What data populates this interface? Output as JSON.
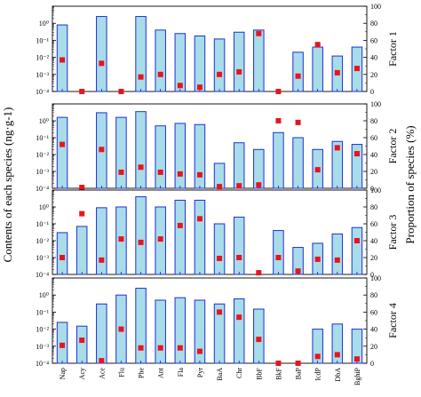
{
  "colors": {
    "bar_fill": "#a8dce9",
    "bar_stroke": "#1f2fd6",
    "marker": "#e8141e",
    "frame": "#000000"
  },
  "left_axis_title": "Contents of each species (ng·g-1)",
  "right_axis_title": "Proportion of species (%)",
  "left_ticks": [
    "10⁰",
    "10⁻¹",
    "10⁻²",
    "10⁻³",
    "10⁻⁴"
  ],
  "right_ticks": [
    "100",
    "80",
    "60",
    "40",
    "20",
    "0"
  ],
  "chart_data": [
    {
      "type": "bar",
      "panel": "Factor 1",
      "factor_label": "Factor 1",
      "categories": [
        "Nap",
        "Acy",
        "Ace",
        "Flu",
        "Phe",
        "Ant",
        "Fla",
        "Pyr",
        "BaA",
        "Chr",
        "BbF",
        "BkF",
        "BaP",
        "IcdP",
        "DbA",
        "BghiP"
      ],
      "series": [
        {
          "values": [
            0.8,
            null,
            2.5,
            null,
            2.5,
            0.4,
            0.25,
            0.18,
            0.12,
            0.3,
            0.4,
            null,
            0.02,
            0.04,
            0.012,
            0.04
          ]
        },
        {
          "name": "",
          "values": [
            37,
            0,
            33,
            0,
            17,
            20,
            7,
            5,
            20,
            23,
            68,
            0,
            18,
            55,
            22,
            27
          ]
        }
      ],
      "ylim_left": [
        0.0001,
        10
      ],
      "ylim_right": [
        0,
        100
      ],
      "yscale_left": "log"
    },
    {
      "type": "bar",
      "panel": "Factor 2",
      "factor_label": "Factor 2",
      "categories": [
        "Nap",
        "Acy",
        "Ace",
        "Flu",
        "Phe",
        "Ant",
        "Fla",
        "Pyr",
        "BaA",
        "Chr",
        "BbF",
        "BkF",
        "BaP",
        "IcdP",
        "DbA",
        "BghiP"
      ],
      "series": [
        {
          "values": [
            1.6,
            null,
            3.0,
            1.6,
            3.5,
            0.5,
            0.7,
            0.6,
            0.003,
            0.05,
            0.02,
            0.2,
            0.1,
            0.02,
            0.06,
            0.04
          ]
        },
        {
          "values": [
            52,
            1,
            46,
            19,
            25,
            19,
            17,
            16,
            2,
            3,
            4,
            80,
            78,
            22,
            48,
            41
          ]
        }
      ],
      "ylim_left": [
        0.0001,
        10
      ],
      "ylim_right": [
        0,
        100
      ],
      "yscale_left": "log"
    },
    {
      "type": "bar",
      "panel": "Factor 3",
      "factor_label": "Factor 3",
      "categories": [
        "Nap",
        "Acy",
        "Ace",
        "Flu",
        "Phe",
        "Ant",
        "Fla",
        "Pyr",
        "BaA",
        "Chr",
        "BbF",
        "BkF",
        "BaP",
        "IcdP",
        "DbA",
        "BghiP"
      ],
      "series": [
        {
          "values": [
            0.03,
            0.07,
            0.9,
            1.0,
            4.0,
            1.0,
            2.5,
            2.5,
            0.1,
            0.25,
            null,
            0.04,
            0.004,
            0.007,
            0.025,
            0.06
          ]
        },
        {
          "values": [
            20,
            72,
            17,
            42,
            38,
            42,
            58,
            66,
            19,
            20,
            2,
            20,
            4,
            18,
            17,
            40
          ]
        }
      ],
      "ylim_left": [
        0.0001,
        10
      ],
      "ylim_right": [
        0,
        100
      ],
      "yscale_left": "log"
    },
    {
      "type": "bar",
      "panel": "Factor 4",
      "factor_label": "Factor 4",
      "categories": [
        "Nap",
        "Acy",
        "Ace",
        "Flu",
        "Phe",
        "Ant",
        "Fla",
        "Pyr",
        "BaA",
        "Chr",
        "BbF",
        "BkF",
        "BaP",
        "IcdP",
        "DbA",
        "BghiP"
      ],
      "series": [
        {
          "values": [
            0.025,
            0.015,
            0.3,
            1.0,
            2.5,
            0.5,
            0.7,
            0.5,
            0.3,
            0.6,
            0.15,
            null,
            null,
            0.01,
            0.02,
            0.01
          ]
        },
        {
          "values": [
            21,
            27,
            3,
            40,
            18,
            18,
            18,
            14,
            60,
            54,
            28,
            0,
            0,
            8,
            10,
            5
          ]
        }
      ],
      "ylim_left": [
        0.0001,
        10
      ],
      "ylim_right": [
        0,
        100
      ],
      "yscale_left": "log"
    }
  ]
}
